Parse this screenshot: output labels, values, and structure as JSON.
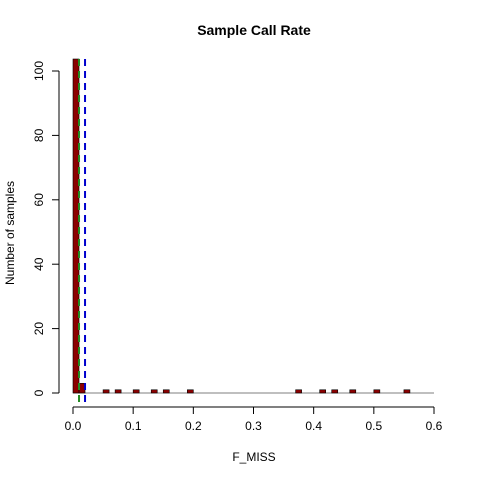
{
  "chart_data": {
    "type": "bar",
    "title": "Sample Call Rate",
    "xlabel": "F_MISS",
    "ylabel": "Number of samples",
    "xlim": [
      0,
      0.6
    ],
    "ylim": [
      0,
      100
    ],
    "x_ticks": [
      "0.0",
      "0.1",
      "0.2",
      "0.3",
      "0.4",
      "0.5",
      "0.6"
    ],
    "y_ticks": [
      "0",
      "20",
      "40",
      "60",
      "80",
      "100"
    ],
    "bin_width": 0.01,
    "bins": [
      {
        "x": 0.005,
        "count": 110
      },
      {
        "x": 0.015,
        "count": 3
      },
      {
        "x": 0.055,
        "count": 1
      },
      {
        "x": 0.075,
        "count": 1
      },
      {
        "x": 0.105,
        "count": 1
      },
      {
        "x": 0.135,
        "count": 1
      },
      {
        "x": 0.155,
        "count": 1
      },
      {
        "x": 0.195,
        "count": 1
      },
      {
        "x": 0.375,
        "count": 1
      },
      {
        "x": 0.415,
        "count": 1
      },
      {
        "x": 0.435,
        "count": 1
      },
      {
        "x": 0.465,
        "count": 1
      },
      {
        "x": 0.505,
        "count": 1
      },
      {
        "x": 0.555,
        "count": 1
      }
    ],
    "vlines": [
      {
        "x": 0.02,
        "color": "#0000cd",
        "style": "dashed"
      },
      {
        "x": 0.01,
        "color": "#228b22",
        "style": "dashed"
      }
    ],
    "bar_color": "#8b0000",
    "grid": false
  }
}
